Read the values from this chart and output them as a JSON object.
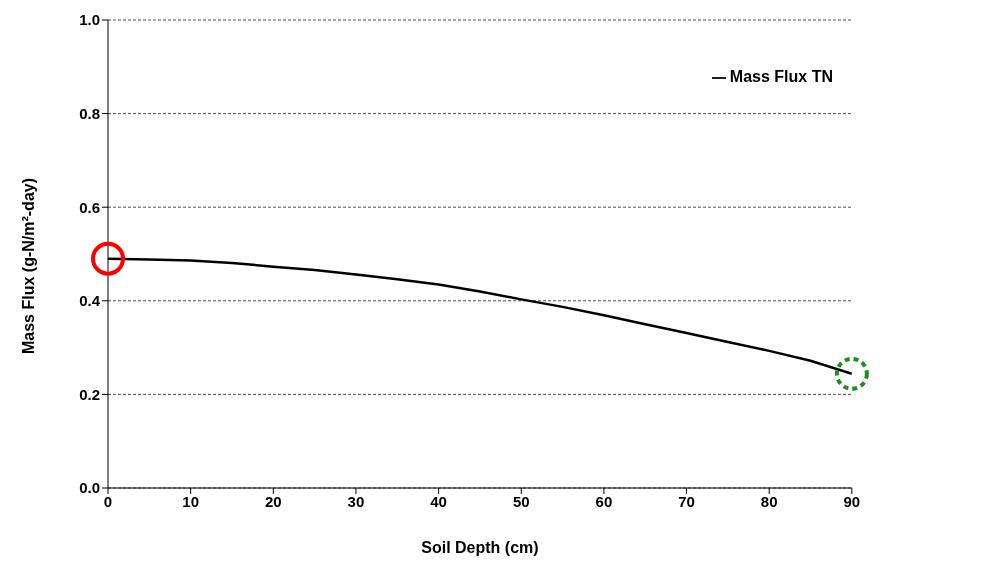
{
  "chart_data": {
    "type": "line",
    "xlabel": "Soil Depth (cm)",
    "ylabel": "Mass Flux (g-N/m²-day)",
    "x": [
      0,
      5,
      10,
      15,
      20,
      25,
      30,
      35,
      40,
      45,
      50,
      55,
      60,
      65,
      70,
      75,
      80,
      85,
      90
    ],
    "series": [
      {
        "name": "Mass Flux TN",
        "color": "#000000",
        "values": [
          0.49,
          0.488,
          0.486,
          0.481,
          0.473,
          0.466,
          0.456,
          0.446,
          0.435,
          0.42,
          0.403,
          0.387,
          0.369,
          0.35,
          0.331,
          0.312,
          0.293,
          0.272,
          0.244
        ]
      }
    ],
    "xlim": [
      0,
      90
    ],
    "xticks": [
      0,
      10,
      20,
      30,
      40,
      50,
      60,
      70,
      80,
      90
    ],
    "ylim": [
      0,
      1
    ],
    "yticks": [
      {
        "value": 0,
        "label": "0.0"
      },
      {
        "value": 0.2,
        "label": "0.2"
      },
      {
        "value": 0.4,
        "label": "0.4"
      },
      {
        "value": 0.6,
        "label": "0.6"
      },
      {
        "value": 0.8,
        "label": "0.8"
      },
      {
        "value": 1,
        "label": "1.0"
      }
    ],
    "grid": "y",
    "legend": "top right",
    "marker": "none",
    "line_style": "solid"
  }
}
